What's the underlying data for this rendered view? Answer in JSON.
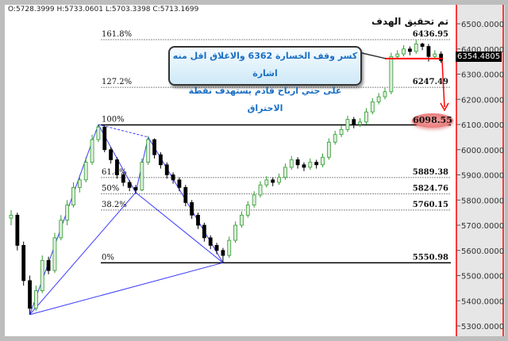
{
  "header": {
    "ohlc": "O:5728.3999  H:5733.0601  L:5703.3398  C:5713.1699"
  },
  "annotations": {
    "title": "تم تحقيق الهدف",
    "callout_line1": "كسر وقف الخسارة 6362 والاغلاق اقل منه اشارة",
    "callout_line2": "على جني ارباح قادم يستهدف نقطة الاحتراق",
    "target_value": "6098.55",
    "stop_level": 6362,
    "current_price": "6354.4805"
  },
  "colors": {
    "bull": "#2e9c2e",
    "bear": "#000000",
    "fib": "#888888",
    "pattern": "#3b3bff",
    "stop": "#ff0000",
    "axis_border": "#ff0000"
  },
  "chart_data": {
    "type": "candlestick",
    "ylim": [
      5290,
      6560
    ],
    "y_ticks": [
      "6500.0000",
      "6400.0000",
      "6300.0000",
      "6200.0000",
      "6100.0000",
      "6000.0000",
      "5900.0000",
      "5800.0000",
      "5700.0000",
      "5600.0000",
      "5500.0000",
      "5400.0000",
      "5300.0000"
    ],
    "fib_levels": [
      {
        "label": "161.8%",
        "value": 6436.95,
        "text": "6436.95"
      },
      {
        "label": "127.2%",
        "value": 6247.49,
        "text": "6247.49"
      },
      {
        "label": "100%",
        "value": 6098.55,
        "text": ""
      },
      {
        "label": "61.8%",
        "value": 5889.38,
        "text": "5889.38"
      },
      {
        "label": "50%",
        "value": 5824.76,
        "text": "5824.76"
      },
      {
        "label": "38.2%",
        "value": 5760.15,
        "text": "5760.15"
      },
      {
        "label": "0%",
        "value": 5550.98,
        "text": "5550.98"
      }
    ],
    "pattern_points": {
      "X": [
        3,
        5345
      ],
      "A": [
        14,
        6100
      ],
      "B": [
        20,
        5830
      ],
      "C": [
        22,
        6050
      ],
      "D": [
        34,
        5551
      ]
    },
    "ohlc": [
      [
        5728,
        5760,
        5700,
        5740
      ],
      [
        5740,
        5750,
        5600,
        5620
      ],
      [
        5620,
        5635,
        5460,
        5480
      ],
      [
        5480,
        5500,
        5345,
        5370
      ],
      [
        5370,
        5460,
        5360,
        5440
      ],
      [
        5440,
        5580,
        5430,
        5560
      ],
      [
        5560,
        5575,
        5505,
        5520
      ],
      [
        5520,
        5670,
        5510,
        5650
      ],
      [
        5650,
        5740,
        5640,
        5720
      ],
      [
        5720,
        5800,
        5700,
        5780
      ],
      [
        5780,
        5870,
        5770,
        5850
      ],
      [
        5850,
        5900,
        5830,
        5880
      ],
      [
        5880,
        5970,
        5870,
        5950
      ],
      [
        5950,
        6060,
        5940,
        6040
      ],
      [
        6040,
        6100,
        6030,
        6090
      ],
      [
        6090,
        6095,
        5990,
        6000
      ],
      [
        6000,
        6010,
        5945,
        5960
      ],
      [
        5960,
        5970,
        5885,
        5900
      ],
      [
        5900,
        5910,
        5855,
        5870
      ],
      [
        5870,
        5880,
        5835,
        5850
      ],
      [
        5850,
        5860,
        5825,
        5840
      ],
      [
        5840,
        5965,
        5835,
        5950
      ],
      [
        5950,
        6055,
        5940,
        6040
      ],
      [
        6040,
        6045,
        5965,
        5980
      ],
      [
        5980,
        5990,
        5925,
        5940
      ],
      [
        5940,
        5950,
        5885,
        5900
      ],
      [
        5900,
        5910,
        5865,
        5880
      ],
      [
        5880,
        5890,
        5835,
        5850
      ],
      [
        5850,
        5860,
        5775,
        5790
      ],
      [
        5790,
        5800,
        5725,
        5740
      ],
      [
        5740,
        5750,
        5685,
        5700
      ],
      [
        5700,
        5710,
        5635,
        5650
      ],
      [
        5650,
        5660,
        5605,
        5620
      ],
      [
        5620,
        5630,
        5585,
        5600
      ],
      [
        5600,
        5610,
        5551,
        5580
      ],
      [
        5580,
        5655,
        5570,
        5640
      ],
      [
        5640,
        5715,
        5630,
        5700
      ],
      [
        5700,
        5755,
        5690,
        5740
      ],
      [
        5740,
        5795,
        5730,
        5780
      ],
      [
        5780,
        5835,
        5770,
        5820
      ],
      [
        5820,
        5875,
        5810,
        5860
      ],
      [
        5860,
        5895,
        5850,
        5880
      ],
      [
        5880,
        5890,
        5855,
        5870
      ],
      [
        5870,
        5905,
        5860,
        5890
      ],
      [
        5890,
        5945,
        5880,
        5930
      ],
      [
        5930,
        5975,
        5920,
        5960
      ],
      [
        5960,
        5970,
        5925,
        5940
      ],
      [
        5940,
        5950,
        5915,
        5930
      ],
      [
        5930,
        5965,
        5920,
        5950
      ],
      [
        5950,
        5960,
        5925,
        5940
      ],
      [
        5940,
        5985,
        5930,
        5970
      ],
      [
        5970,
        6045,
        5960,
        6030
      ],
      [
        6030,
        6075,
        6020,
        6060
      ],
      [
        6060,
        6095,
        6050,
        6080
      ],
      [
        6080,
        6135,
        6070,
        6120
      ],
      [
        6120,
        6130,
        6085,
        6100
      ],
      [
        6100,
        6125,
        6090,
        6110
      ],
      [
        6110,
        6165,
        6100,
        6150
      ],
      [
        6150,
        6205,
        6140,
        6190
      ],
      [
        6190,
        6225,
        6180,
        6210
      ],
      [
        6210,
        6245,
        6200,
        6230
      ],
      [
        6230,
        6385,
        6220,
        6370
      ],
      [
        6370,
        6395,
        6360,
        6380
      ],
      [
        6380,
        6415,
        6370,
        6400
      ],
      [
        6400,
        6410,
        6375,
        6390
      ],
      [
        6390,
        6437,
        6380,
        6420
      ],
      [
        6420,
        6425,
        6395,
        6410
      ],
      [
        6410,
        6420,
        6350,
        6370
      ],
      [
        6370,
        6395,
        6360,
        6380
      ],
      [
        6380,
        6390,
        6345,
        6354
      ]
    ]
  }
}
